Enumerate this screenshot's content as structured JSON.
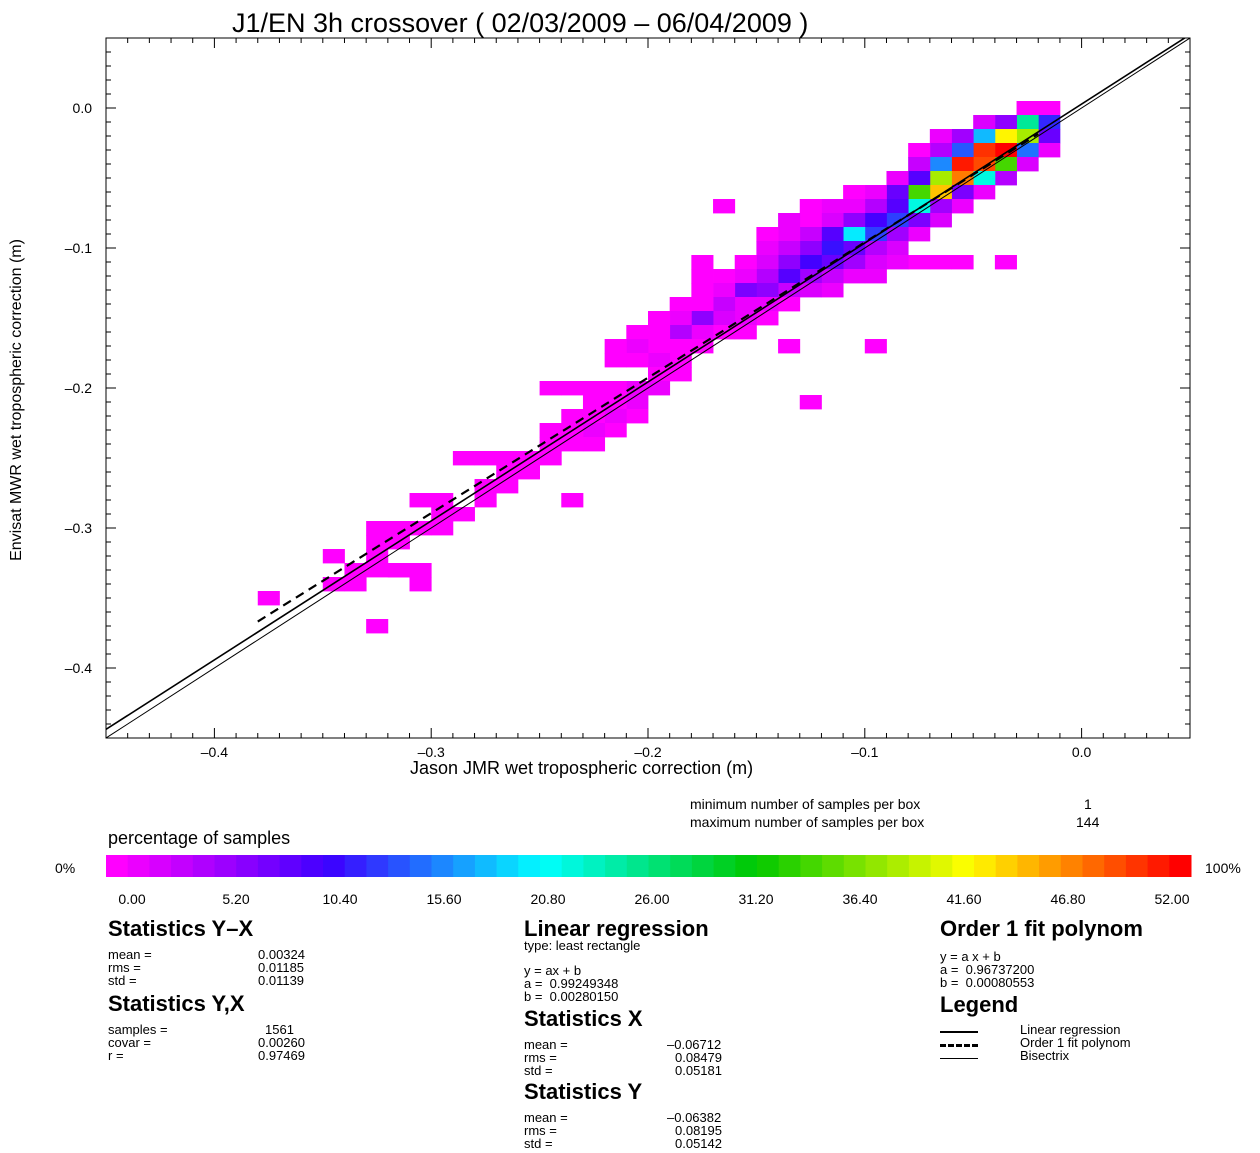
{
  "chart_data": {
    "type": "heatmap",
    "title": "J1/EN 3h crossover ( 02/03/2009 – 06/04/2009 )",
    "xlabel": "Jason JMR wet tropospheric correction (m)",
    "ylabel": "Envisat MWR wet tropospheric correction (m)",
    "xlim": [
      -0.45,
      0.05
    ],
    "ylim": [
      -0.45,
      0.05
    ],
    "xticks": [
      -0.4,
      -0.3,
      -0.2,
      -0.1,
      0.0
    ],
    "xtick_labels": [
      "–0.4",
      "–0.3",
      "–0.2",
      "–0.1",
      "0.0"
    ],
    "yticks": [
      0.0,
      -0.1,
      -0.2,
      -0.3,
      -0.4
    ],
    "ytick_labels": [
      "0.0",
      "–0.1",
      "–0.2",
      "–0.3",
      "–0.4"
    ],
    "bin_size": 0.01,
    "cells": [
      [
        -0.02,
        0.0,
        0
      ],
      [
        -0.03,
        0.0,
        0
      ],
      [
        -0.02,
        -0.01,
        12
      ],
      [
        -0.03,
        -0.01,
        25
      ],
      [
        -0.04,
        -0.01,
        6
      ],
      [
        -0.05,
        -0.01,
        2
      ],
      [
        -0.02,
        -0.02,
        8
      ],
      [
        -0.03,
        -0.02,
        38
      ],
      [
        -0.04,
        -0.02,
        42
      ],
      [
        -0.05,
        -0.02,
        18
      ],
      [
        -0.06,
        -0.02,
        5
      ],
      [
        -0.07,
        -0.02,
        1
      ],
      [
        -0.02,
        -0.03,
        1
      ],
      [
        -0.03,
        -0.03,
        15
      ],
      [
        -0.04,
        -0.03,
        52
      ],
      [
        -0.05,
        -0.03,
        50
      ],
      [
        -0.06,
        -0.03,
        14
      ],
      [
        -0.07,
        -0.03,
        4
      ],
      [
        -0.08,
        -0.03,
        0
      ],
      [
        -0.03,
        -0.04,
        2
      ],
      [
        -0.04,
        -0.04,
        34
      ],
      [
        -0.05,
        -0.04,
        49
      ],
      [
        -0.06,
        -0.04,
        51
      ],
      [
        -0.07,
        -0.04,
        16
      ],
      [
        -0.08,
        -0.04,
        3
      ],
      [
        -0.04,
        -0.05,
        4
      ],
      [
        -0.05,
        -0.05,
        22
      ],
      [
        -0.06,
        -0.05,
        47
      ],
      [
        -0.07,
        -0.05,
        38
      ],
      [
        -0.08,
        -0.05,
        9
      ],
      [
        -0.09,
        -0.05,
        1
      ],
      [
        -0.05,
        -0.06,
        1
      ],
      [
        -0.06,
        -0.06,
        7
      ],
      [
        -0.07,
        -0.06,
        44
      ],
      [
        -0.08,
        -0.06,
        34
      ],
      [
        -0.09,
        -0.06,
        8
      ],
      [
        -0.1,
        -0.06,
        1
      ],
      [
        -0.11,
        -0.06,
        0
      ],
      [
        -0.06,
        -0.07,
        1
      ],
      [
        -0.07,
        -0.07,
        5
      ],
      [
        -0.08,
        -0.07,
        22
      ],
      [
        -0.09,
        -0.07,
        9
      ],
      [
        -0.1,
        -0.07,
        4
      ],
      [
        -0.11,
        -0.07,
        1
      ],
      [
        -0.12,
        -0.07,
        1
      ],
      [
        -0.13,
        -0.07,
        0
      ],
      [
        -0.17,
        -0.07,
        0
      ],
      [
        -0.07,
        -0.08,
        2
      ],
      [
        -0.08,
        -0.08,
        7
      ],
      [
        -0.09,
        -0.08,
        13
      ],
      [
        -0.1,
        -0.08,
        10
      ],
      [
        -0.11,
        -0.08,
        6
      ],
      [
        -0.12,
        -0.08,
        2
      ],
      [
        -0.13,
        -0.08,
        0
      ],
      [
        -0.14,
        -0.08,
        1
      ],
      [
        -0.08,
        -0.09,
        1
      ],
      [
        -0.09,
        -0.09,
        5
      ],
      [
        -0.1,
        -0.09,
        13
      ],
      [
        -0.11,
        -0.09,
        20
      ],
      [
        -0.12,
        -0.09,
        9
      ],
      [
        -0.13,
        -0.09,
        3
      ],
      [
        -0.14,
        -0.09,
        1
      ],
      [
        -0.15,
        -0.09,
        0
      ],
      [
        -0.09,
        -0.1,
        2
      ],
      [
        -0.1,
        -0.1,
        4
      ],
      [
        -0.11,
        -0.1,
        8
      ],
      [
        -0.12,
        -0.1,
        11
      ],
      [
        -0.13,
        -0.1,
        6
      ],
      [
        -0.14,
        -0.1,
        3
      ],
      [
        -0.15,
        -0.1,
        1
      ],
      [
        -0.08,
        -0.11,
        0
      ],
      [
        -0.09,
        -0.11,
        1
      ],
      [
        -0.1,
        -0.11,
        2
      ],
      [
        -0.11,
        -0.11,
        5
      ],
      [
        -0.12,
        -0.11,
        8
      ],
      [
        -0.13,
        -0.11,
        10
      ],
      [
        -0.14,
        -0.11,
        6
      ],
      [
        -0.15,
        -0.11,
        2
      ],
      [
        -0.16,
        -0.11,
        0
      ],
      [
        -0.07,
        -0.11,
        0
      ],
      [
        -0.06,
        -0.11,
        0
      ],
      [
        -0.04,
        -0.11,
        0
      ],
      [
        -0.18,
        -0.11,
        0
      ],
      [
        -0.1,
        -0.12,
        1
      ],
      [
        -0.11,
        -0.12,
        1
      ],
      [
        -0.12,
        -0.12,
        3
      ],
      [
        -0.13,
        -0.12,
        5
      ],
      [
        -0.14,
        -0.12,
        9
      ],
      [
        -0.15,
        -0.12,
        4
      ],
      [
        -0.16,
        -0.12,
        1
      ],
      [
        -0.17,
        -0.12,
        0
      ],
      [
        -0.18,
        -0.12,
        0
      ],
      [
        -0.12,
        -0.13,
        1
      ],
      [
        -0.13,
        -0.13,
        2
      ],
      [
        -0.14,
        -0.13,
        3
      ],
      [
        -0.15,
        -0.13,
        6
      ],
      [
        -0.16,
        -0.13,
        7
      ],
      [
        -0.17,
        -0.13,
        1
      ],
      [
        -0.18,
        -0.13,
        0
      ],
      [
        -0.14,
        -0.14,
        0
      ],
      [
        -0.15,
        -0.14,
        1
      ],
      [
        -0.16,
        -0.14,
        1
      ],
      [
        -0.17,
        -0.14,
        3
      ],
      [
        -0.18,
        -0.14,
        0
      ],
      [
        -0.19,
        -0.14,
        0
      ],
      [
        -0.15,
        -0.15,
        0
      ],
      [
        -0.16,
        -0.15,
        1
      ],
      [
        -0.17,
        -0.15,
        2
      ],
      [
        -0.18,
        -0.15,
        6
      ],
      [
        -0.19,
        -0.15,
        1
      ],
      [
        -0.2,
        -0.15,
        0
      ],
      [
        -0.17,
        -0.16,
        0
      ],
      [
        -0.18,
        -0.16,
        1
      ],
      [
        -0.19,
        -0.16,
        4
      ],
      [
        -0.2,
        -0.16,
        0
      ],
      [
        -0.21,
        -0.16,
        0
      ],
      [
        -0.16,
        -0.16,
        0
      ],
      [
        -0.18,
        -0.17,
        0
      ],
      [
        -0.19,
        -0.17,
        0
      ],
      [
        -0.2,
        -0.17,
        0
      ],
      [
        -0.21,
        -0.17,
        1
      ],
      [
        -0.22,
        -0.17,
        0
      ],
      [
        -0.14,
        -0.17,
        0
      ],
      [
        -0.1,
        -0.17,
        0
      ],
      [
        -0.19,
        -0.18,
        0
      ],
      [
        -0.2,
        -0.18,
        1
      ],
      [
        -0.21,
        -0.18,
        0
      ],
      [
        -0.22,
        -0.18,
        0
      ],
      [
        -0.19,
        -0.19,
        0
      ],
      [
        -0.2,
        -0.19,
        0
      ],
      [
        -0.2,
        -0.2,
        1
      ],
      [
        -0.21,
        -0.2,
        1
      ],
      [
        -0.22,
        -0.2,
        0
      ],
      [
        -0.23,
        -0.2,
        0
      ],
      [
        -0.24,
        -0.2,
        0
      ],
      [
        -0.25,
        -0.2,
        0
      ],
      [
        -0.21,
        -0.21,
        1
      ],
      [
        -0.22,
        -0.21,
        0
      ],
      [
        -0.23,
        -0.21,
        0
      ],
      [
        -0.13,
        -0.21,
        0
      ],
      [
        -0.21,
        -0.22,
        0
      ],
      [
        -0.22,
        -0.22,
        1
      ],
      [
        -0.23,
        -0.22,
        0
      ],
      [
        -0.24,
        -0.22,
        0
      ],
      [
        -0.22,
        -0.23,
        0
      ],
      [
        -0.23,
        -0.23,
        1
      ],
      [
        -0.24,
        -0.23,
        0
      ],
      [
        -0.25,
        -0.23,
        0
      ],
      [
        -0.23,
        -0.24,
        0
      ],
      [
        -0.24,
        -0.24,
        0
      ],
      [
        -0.25,
        -0.24,
        0
      ],
      [
        -0.25,
        -0.25,
        0
      ],
      [
        -0.26,
        -0.25,
        0
      ],
      [
        -0.27,
        -0.25,
        0
      ],
      [
        -0.28,
        -0.25,
        0
      ],
      [
        -0.29,
        -0.25,
        0
      ],
      [
        -0.26,
        -0.26,
        0
      ],
      [
        -0.27,
        -0.26,
        0
      ],
      [
        -0.27,
        -0.27,
        0
      ],
      [
        -0.28,
        -0.27,
        0
      ],
      [
        -0.28,
        -0.28,
        0
      ],
      [
        -0.3,
        -0.28,
        0
      ],
      [
        -0.31,
        -0.28,
        0
      ],
      [
        -0.24,
        -0.28,
        0
      ],
      [
        -0.29,
        -0.29,
        0
      ],
      [
        -0.3,
        -0.29,
        0
      ],
      [
        -0.3,
        -0.3,
        0
      ],
      [
        -0.31,
        -0.3,
        0
      ],
      [
        -0.32,
        -0.3,
        0
      ],
      [
        -0.33,
        -0.3,
        0
      ],
      [
        -0.32,
        -0.31,
        0
      ],
      [
        -0.33,
        -0.31,
        0
      ],
      [
        -0.33,
        -0.32,
        0
      ],
      [
        -0.35,
        -0.32,
        0
      ],
      [
        -0.32,
        -0.33,
        0
      ],
      [
        -0.33,
        -0.33,
        0
      ],
      [
        -0.34,
        -0.33,
        0
      ],
      [
        -0.31,
        -0.33,
        0
      ],
      [
        -0.32,
        -0.33,
        0
      ],
      [
        -0.34,
        -0.34,
        0
      ],
      [
        -0.35,
        -0.34,
        0
      ],
      [
        -0.31,
        -0.34,
        0
      ],
      [
        -0.38,
        -0.35,
        0
      ],
      [
        -0.33,
        -0.37,
        0
      ]
    ],
    "color_max_percent": 52.0,
    "lines": [
      {
        "name": "Linear regression",
        "style": "solid-thick",
        "slope": 0.99249348,
        "intercept": 0.0028015,
        "x": [
          -0.45,
          0.05
        ]
      },
      {
        "name": "Order 1 fit polynom",
        "style": "dashed",
        "slope": 0.967372,
        "intercept": 0.00080553,
        "x": [
          -0.38,
          -0.02
        ]
      },
      {
        "name": "Bisectrix",
        "style": "solid-thin",
        "slope": 1.0,
        "intercept": 0.0,
        "x": [
          -0.45,
          0.05
        ]
      }
    ],
    "samples_info": {
      "min_label": "minimum number of samples per box",
      "min_value": "1",
      "max_label": "maximum number of samples per box",
      "max_value": "144"
    },
    "colorbar": {
      "title": "percentage of samples",
      "left_label": "0%",
      "right_label": "100%",
      "tick_labels": [
        "0.00",
        "5.20",
        "10.40",
        "15.60",
        "20.80",
        "26.00",
        "31.20",
        "36.40",
        "41.60",
        "46.80",
        "52.00"
      ]
    }
  },
  "stats": {
    "yx": {
      "heading": "Statistics Y–X",
      "rows": [
        [
          "mean =",
          "0.00324"
        ],
        [
          "rms =",
          "0.01185"
        ],
        [
          "std =",
          "0.01139"
        ]
      ]
    },
    "yx_comma": {
      "heading": "Statistics Y,X",
      "rows": [
        [
          "samples =",
          "1561"
        ],
        [
          "covar =",
          "0.00260"
        ],
        [
          "r =",
          "0.97469"
        ]
      ]
    },
    "regression": {
      "heading": "Linear regression",
      "type": "type: least rectangle",
      "eq": "y = ax + b",
      "a": "a =  0.99249348",
      "b": "b =  0.00280150"
    },
    "x": {
      "heading": "Statistics X",
      "rows": [
        [
          "mean =",
          "–0.06712"
        ],
        [
          "rms =",
          "0.08479"
        ],
        [
          "std =",
          "0.05181"
        ]
      ]
    },
    "y": {
      "heading": "Statistics Y",
      "rows": [
        [
          "mean =",
          "–0.06382"
        ],
        [
          "rms =",
          "0.08195"
        ],
        [
          "std =",
          "0.05142"
        ]
      ]
    },
    "poly": {
      "heading": "Order 1 fit polynom",
      "eq": "y = a x + b",
      "a": "a =  0.96737200",
      "b": "b =  0.00080553"
    },
    "legend": {
      "heading": "Legend",
      "items": [
        "Linear regression",
        "Order 1 fit polynom",
        "Bisectrix"
      ]
    }
  }
}
